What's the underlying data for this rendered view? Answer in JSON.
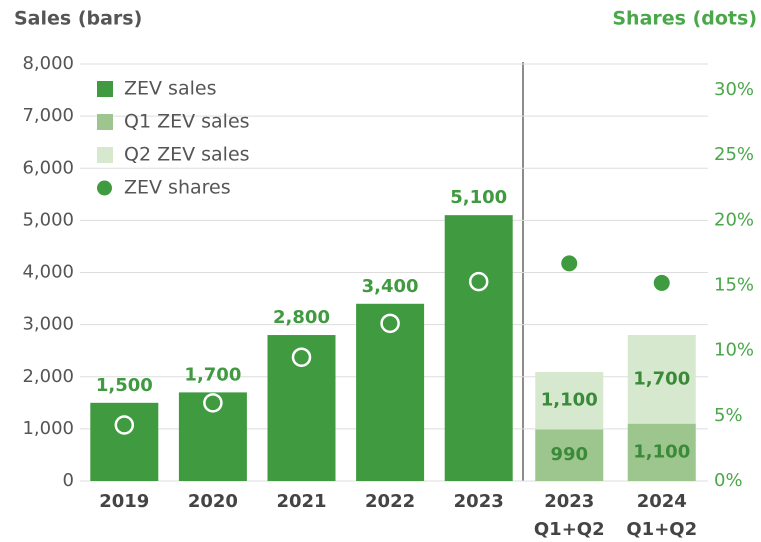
{
  "chart_data": {
    "type": "bar",
    "title": "Sales (bars)",
    "y2_title": "Shares (dots)",
    "categories": [
      "2019",
      "2020",
      "2021",
      "2022",
      "2023",
      "2023 Q1+Q2",
      "2024 Q1+Q2"
    ],
    "series": [
      {
        "name": "ZEV sales",
        "color": "#3f9a40",
        "values": [
          1500,
          1700,
          2800,
          3400,
          5100,
          null,
          null
        ],
        "value_labels": [
          "1,500",
          "1,700",
          "2,800",
          "3,400",
          "5,100",
          null,
          null
        ]
      },
      {
        "name": "Q1 ZEV sales",
        "color": "#9dc68e",
        "values": [
          null,
          null,
          null,
          null,
          null,
          990,
          1100
        ],
        "value_labels": [
          null,
          null,
          null,
          null,
          null,
          "990",
          "1,100"
        ]
      },
      {
        "name": "Q2 ZEV sales",
        "color": "#d6e8cd",
        "values": [
          null,
          null,
          null,
          null,
          null,
          1100,
          1700
        ],
        "value_labels": [
          null,
          null,
          null,
          null,
          null,
          "1,100",
          "1,700"
        ]
      },
      {
        "name": "ZEV shares",
        "color": "#3f9a40",
        "axis": "y2",
        "type": "scatter",
        "values": [
          4.3,
          6.0,
          9.5,
          12.1,
          15.3,
          16.7,
          15.2
        ]
      }
    ],
    "ylim": [
      0,
      8000
    ],
    "yticks": [
      0,
      {
        "value": 1000,
        "label": "1,000"
      },
      {
        "value": 2000,
        "label": "2,000"
      },
      {
        "value": 3000,
        "label": "3,000"
      },
      {
        "value": 4000,
        "label": "4,000"
      },
      {
        "value": 5000,
        "label": "5,000"
      },
      {
        "value": 6000,
        "label": "6,000"
      },
      {
        "value": 7000,
        "label": "7,000"
      },
      {
        "value": 8000,
        "label": "8,000"
      }
    ],
    "y2lim": [
      0,
      32
    ],
    "y2ticks": [
      {
        "value": 0,
        "label": "0%"
      },
      {
        "value": 5,
        "label": "5%"
      },
      {
        "value": 10,
        "label": "10%"
      },
      {
        "value": 15,
        "label": "15%"
      },
      {
        "value": 20,
        "label": "20%"
      },
      {
        "value": 25,
        "label": "25%"
      },
      {
        "value": 30,
        "label": "30%"
      }
    ],
    "grid": true,
    "legend": "upper left"
  }
}
